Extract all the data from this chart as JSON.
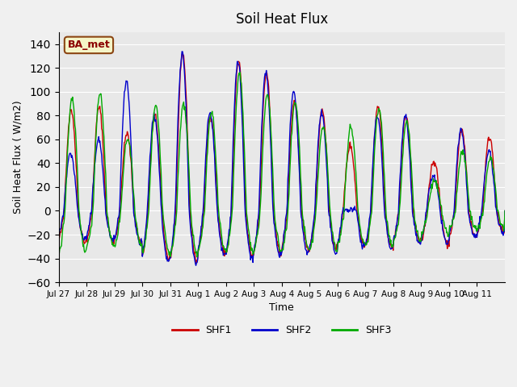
{
  "title": "Soil Heat Flux",
  "xlabel": "Time",
  "ylabel": "Soil Heat Flux ( W/m2)",
  "ylim": [
    -60,
    150
  ],
  "yticks": [
    -60,
    -40,
    -20,
    0,
    20,
    40,
    60,
    80,
    100,
    120,
    140
  ],
  "bg_color": "#e8e8e8",
  "fig_color": "#f0f0f0",
  "legend_label": "BA_met",
  "series": [
    "SHF1",
    "SHF2",
    "SHF3"
  ],
  "colors": [
    "#cc0000",
    "#0000cc",
    "#00aa00"
  ],
  "x_tick_labels": [
    "Jul 27",
    "Jul 28",
    "Jul 29",
    "Jul 30",
    "Jul 31",
    "Aug 1",
    "Aug 2",
    "Aug 3",
    "Aug 4",
    "Aug 5",
    "Aug 6",
    "Aug 7",
    "Aug 8",
    "Aug 9",
    "Aug 10",
    "Aug 11"
  ],
  "n_days": 16,
  "n_per_day": 48
}
